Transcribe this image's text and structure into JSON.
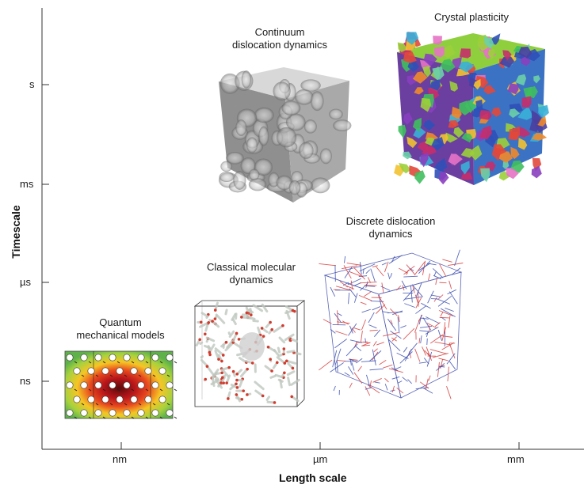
{
  "axes": {
    "x_title": "Length scale",
    "y_title": "Timescale",
    "x_ticks": [
      "nm",
      "µm",
      "mm"
    ],
    "y_ticks": [
      "s",
      "ms",
      "µs",
      "ns"
    ]
  },
  "models": [
    {
      "id": "quantum",
      "label": [
        "Quantum",
        "mechanical models"
      ]
    },
    {
      "id": "md",
      "label": [
        "Classical molecular",
        "dynamics"
      ]
    },
    {
      "id": "ddd",
      "label": [
        "Discrete dislocation",
        "dynamics"
      ]
    },
    {
      "id": "cdd",
      "label": [
        "Continuum",
        "dislocation dynamics"
      ]
    },
    {
      "id": "cp",
      "label": [
        "Crystal plasticity"
      ]
    }
  ],
  "colors": {
    "axis": "#333333",
    "quantum_hot": "#7a0f0f",
    "quantum_cold": "#6cbf4a",
    "md_red": "#d23a2c",
    "ddd_blue": "#3c4fb0",
    "ddd_red": "#d63b3b"
  }
}
